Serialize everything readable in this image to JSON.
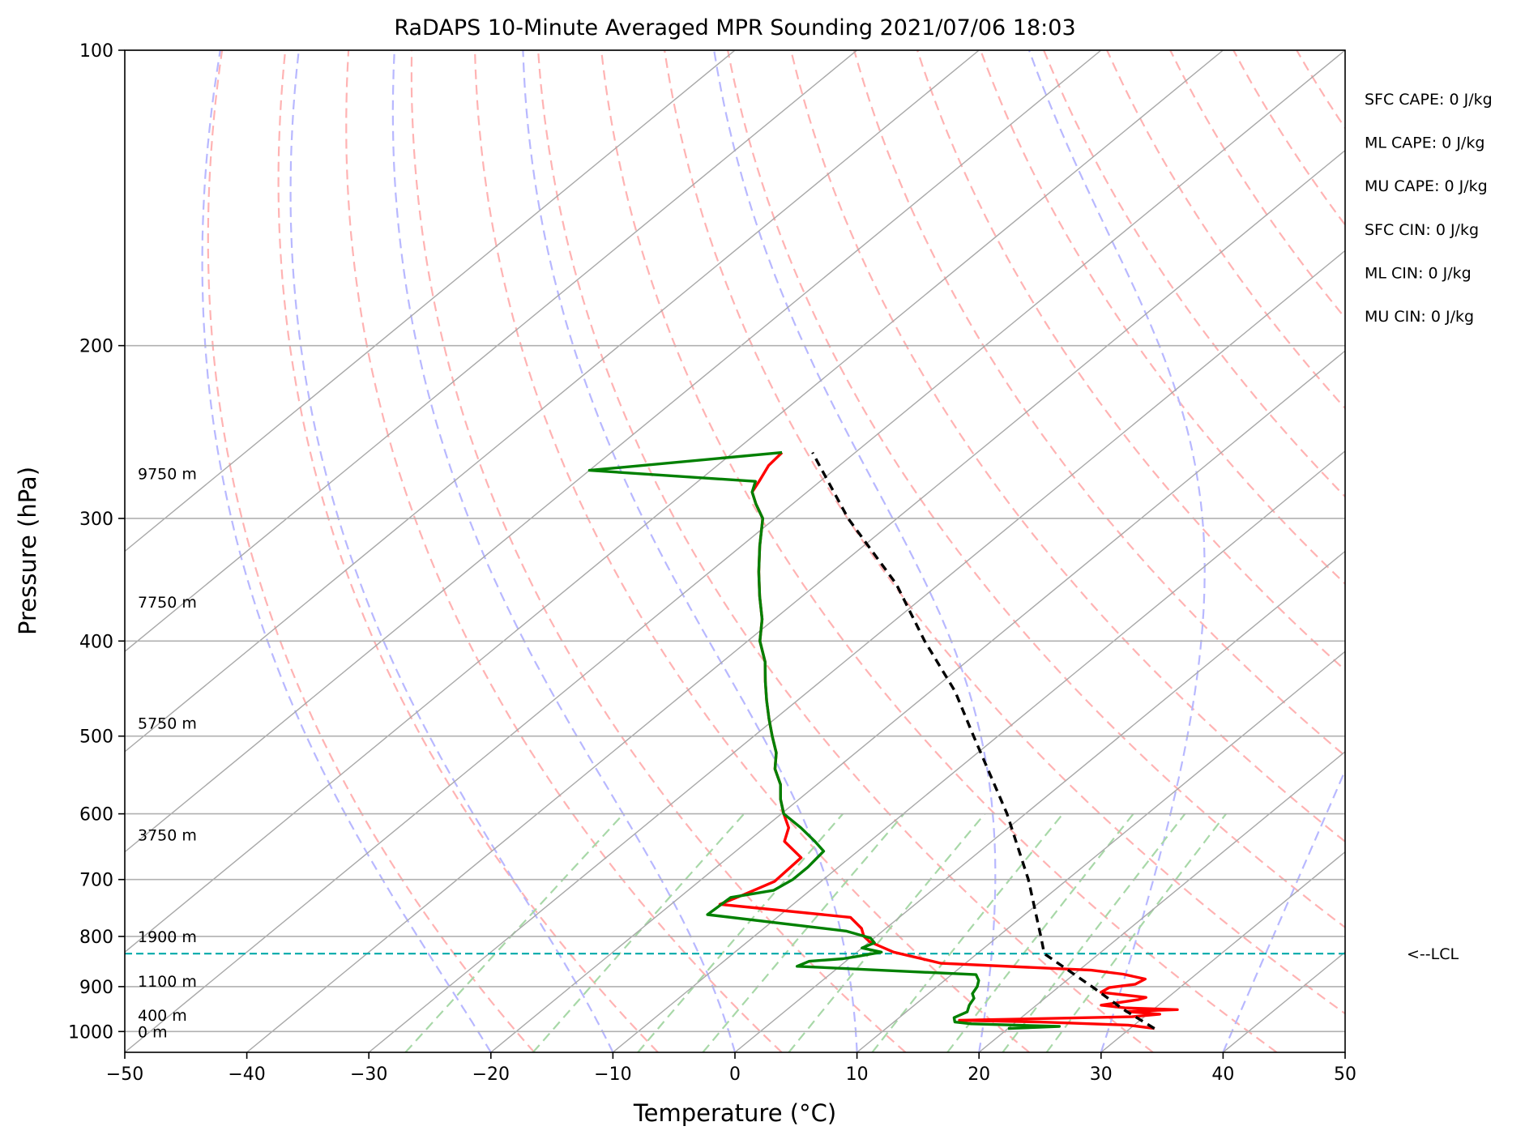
{
  "chart_data": {
    "type": "line",
    "title": "RaDAPS 10-Minute Averaged MPR Sounding 2021/07/06 18:03",
    "xlabel": "Temperature (°C)",
    "ylabel": "Pressure (hPa)",
    "xlim": [
      -50,
      50
    ],
    "ylim": [
      1050,
      100
    ],
    "y_scale": "log",
    "skew": "skew-T",
    "grid": true,
    "x_ticks": [
      -50,
      -40,
      -30,
      -20,
      -10,
      0,
      10,
      20,
      30,
      40,
      50
    ],
    "x_tick_labels": [
      "−50",
      "−40",
      "−30",
      "−20",
      "−10",
      "0",
      "10",
      "20",
      "30",
      "40",
      "50"
    ],
    "y_ticks": [
      100,
      200,
      300,
      400,
      500,
      600,
      700,
      800,
      900,
      1000
    ],
    "y_tick_labels": [
      "100",
      "200",
      "300",
      "400",
      "500",
      "600",
      "700",
      "800",
      "900",
      "1000"
    ],
    "isotherms": [
      -100,
      -90,
      -80,
      -70,
      -60,
      -50,
      -40,
      -30,
      -20,
      -10,
      0,
      10,
      20,
      30,
      40,
      50
    ],
    "dry_adiabats_theta_c": [
      -20,
      -10,
      0,
      10,
      20,
      30,
      40,
      50,
      60,
      70,
      80,
      90,
      100,
      110,
      120,
      130,
      140,
      150,
      160
    ],
    "moist_adiabats_c": [
      -20,
      -10,
      0,
      10,
      20,
      30,
      40,
      50
    ],
    "mixing_ratio_lines_gkg": [
      0.4,
      1,
      2,
      3,
      5,
      8,
      12,
      16,
      20
    ],
    "series": [
      {
        "name": "",
        "color": "#ff0000",
        "points": [
          {
            "p": 993,
            "t": 32.0
          },
          {
            "p": 985,
            "t": 29.5
          },
          {
            "p": 978,
            "t": 22.0
          },
          {
            "p": 974,
            "t": 15.2
          },
          {
            "p": 966,
            "t": 29.0
          },
          {
            "p": 960,
            "t": 31.0
          },
          {
            "p": 954,
            "t": 28.0
          },
          {
            "p": 950,
            "t": 32.0
          },
          {
            "p": 946,
            "t": 27.5
          },
          {
            "p": 940,
            "t": 25.3
          },
          {
            "p": 928,
            "t": 27.8
          },
          {
            "p": 923,
            "t": 28.2
          },
          {
            "p": 912,
            "t": 24.0
          },
          {
            "p": 902,
            "t": 24.2
          },
          {
            "p": 895,
            "t": 26.0
          },
          {
            "p": 884,
            "t": 26.3
          },
          {
            "p": 874,
            "t": 24.0
          },
          {
            "p": 866,
            "t": 21.0
          },
          {
            "p": 852,
            "t": 8.0
          },
          {
            "p": 830,
            "t": 3.0
          },
          {
            "p": 810,
            "t": 0.0
          },
          {
            "p": 800,
            "t": -1.0
          },
          {
            "p": 785,
            "t": -2.0
          },
          {
            "p": 765,
            "t": -4.0
          },
          {
            "p": 742,
            "t": -16.0
          },
          {
            "p": 725,
            "t": -15.0
          },
          {
            "p": 703,
            "t": -13.8
          },
          {
            "p": 665,
            "t": -14.0
          },
          {
            "p": 640,
            "t": -17.0
          },
          {
            "p": 620,
            "t": -18.0
          },
          {
            "p": 600,
            "t": -19.8
          },
          {
            "p": 580,
            "t": -21.5
          },
          {
            "p": 560,
            "t": -23.0
          },
          {
            "p": 540,
            "t": -25.0
          },
          {
            "p": 520,
            "t": -26.5
          },
          {
            "p": 500,
            "t": -28.5
          },
          {
            "p": 480,
            "t": -30.5
          },
          {
            "p": 460,
            "t": -32.5
          },
          {
            "p": 440,
            "t": -34.5
          },
          {
            "p": 420,
            "t": -36.5
          },
          {
            "p": 400,
            "t": -39.0
          },
          {
            "p": 380,
            "t": -41.0
          },
          {
            "p": 360,
            "t": -43.5
          },
          {
            "p": 340,
            "t": -46.0
          },
          {
            "p": 320,
            "t": -48.5
          },
          {
            "p": 300,
            "t": -51.0
          },
          {
            "p": 290,
            "t": -53.0
          },
          {
            "p": 282,
            "t": -54.5
          },
          {
            "p": 275,
            "t": -55.0
          },
          {
            "p": 265,
            "t": -55.8
          },
          {
            "p": 257,
            "t": -56.0
          }
        ]
      },
      {
        "name": "",
        "color": "#008000",
        "points": [
          {
            "p": 993,
            "t": 20.0
          },
          {
            "p": 988,
            "t": 24.0
          },
          {
            "p": 982,
            "t": 16.5
          },
          {
            "p": 978,
            "t": 15.0
          },
          {
            "p": 968,
            "t": 14.5
          },
          {
            "p": 955,
            "t": 15.0
          },
          {
            "p": 940,
            "t": 14.5
          },
          {
            "p": 925,
            "t": 14.2
          },
          {
            "p": 915,
            "t": 13.6
          },
          {
            "p": 900,
            "t": 13.3
          },
          {
            "p": 887,
            "t": 12.8
          },
          {
            "p": 875,
            "t": 12.0
          },
          {
            "p": 858,
            "t": -3.5
          },
          {
            "p": 848,
            "t": -3.0
          },
          {
            "p": 843,
            "t": -0.5
          },
          {
            "p": 838,
            "t": 0.5
          },
          {
            "p": 830,
            "t": 2.0
          },
          {
            "p": 822,
            "t": 0.0
          },
          {
            "p": 812,
            "t": 0.5
          },
          {
            "p": 803,
            "t": -0.3
          },
          {
            "p": 790,
            "t": -3.0
          },
          {
            "p": 760,
            "t": -16.0
          },
          {
            "p": 730,
            "t": -15.8
          },
          {
            "p": 718,
            "t": -13.0
          },
          {
            "p": 700,
            "t": -12.5
          },
          {
            "p": 680,
            "t": -12.5
          },
          {
            "p": 655,
            "t": -12.8
          },
          {
            "p": 640,
            "t": -14.5
          },
          {
            "p": 620,
            "t": -17.0
          },
          {
            "p": 600,
            "t": -19.8
          },
          {
            "p": 580,
            "t": -21.5
          },
          {
            "p": 560,
            "t": -23.0
          },
          {
            "p": 540,
            "t": -25.0
          },
          {
            "p": 520,
            "t": -26.5
          },
          {
            "p": 500,
            "t": -28.5
          },
          {
            "p": 480,
            "t": -30.5
          },
          {
            "p": 460,
            "t": -32.5
          },
          {
            "p": 440,
            "t": -34.5
          },
          {
            "p": 420,
            "t": -36.5
          },
          {
            "p": 400,
            "t": -39.0
          },
          {
            "p": 380,
            "t": -41.0
          },
          {
            "p": 360,
            "t": -43.5
          },
          {
            "p": 340,
            "t": -46.0
          },
          {
            "p": 320,
            "t": -48.5
          },
          {
            "p": 300,
            "t": -51.0
          },
          {
            "p": 290,
            "t": -53.0
          },
          {
            "p": 282,
            "t": -54.5
          },
          {
            "p": 275,
            "t": -55.3
          },
          {
            "p": 268,
            "t": -70.0
          },
          {
            "p": 257,
            "t": -56.0
          }
        ]
      },
      {
        "name": "",
        "color": "#000000",
        "dashed": true,
        "points": [
          {
            "p": 993,
            "t": 32.0
          },
          {
            "p": 950,
            "t": 27.6
          },
          {
            "p": 900,
            "t": 22.7
          },
          {
            "p": 833,
            "t": 15.5
          },
          {
            "p": 800,
            "t": 13.5
          },
          {
            "p": 700,
            "t": 6.8
          },
          {
            "p": 600,
            "t": -1.5
          },
          {
            "p": 500,
            "t": -12.0
          },
          {
            "p": 450,
            "t": -18.0
          },
          {
            "p": 400,
            "t": -25.5
          },
          {
            "p": 350,
            "t": -33.5
          },
          {
            "p": 300,
            "t": -44.0
          },
          {
            "p": 257,
            "t": -53.5
          }
        ]
      }
    ],
    "lcl": {
      "p": 833,
      "label": "<--LCL",
      "color": "#00aaaa"
    },
    "height_labels": [
      {
        "p": 270,
        "text": "9750 m"
      },
      {
        "p": 365,
        "text": "7750 m"
      },
      {
        "p": 485,
        "text": "5750 m"
      },
      {
        "p": 630,
        "text": "3750 m"
      },
      {
        "p": 800,
        "text": "1900 m"
      },
      {
        "p": 888,
        "text": "1100 m"
      },
      {
        "p": 962,
        "text": "400 m"
      },
      {
        "p": 1000,
        "text": "0 m"
      }
    ],
    "indices": [
      "SFC CAPE: 0 J/kg",
      "ML CAPE: 0 J/kg",
      "MU CAPE: 0 J/kg",
      "SFC CIN: 0 J/kg",
      "ML CIN: 0 J/kg",
      "MU CIN: 0 J/kg"
    ],
    "colors": {
      "grid": "#b0b0b0",
      "isotherm": "#a8a8a8",
      "dry_adiabat": "#ffb3b3",
      "moist_adiabat": "#b8b8ff",
      "mixing_ratio": "#a8d8a8"
    }
  }
}
